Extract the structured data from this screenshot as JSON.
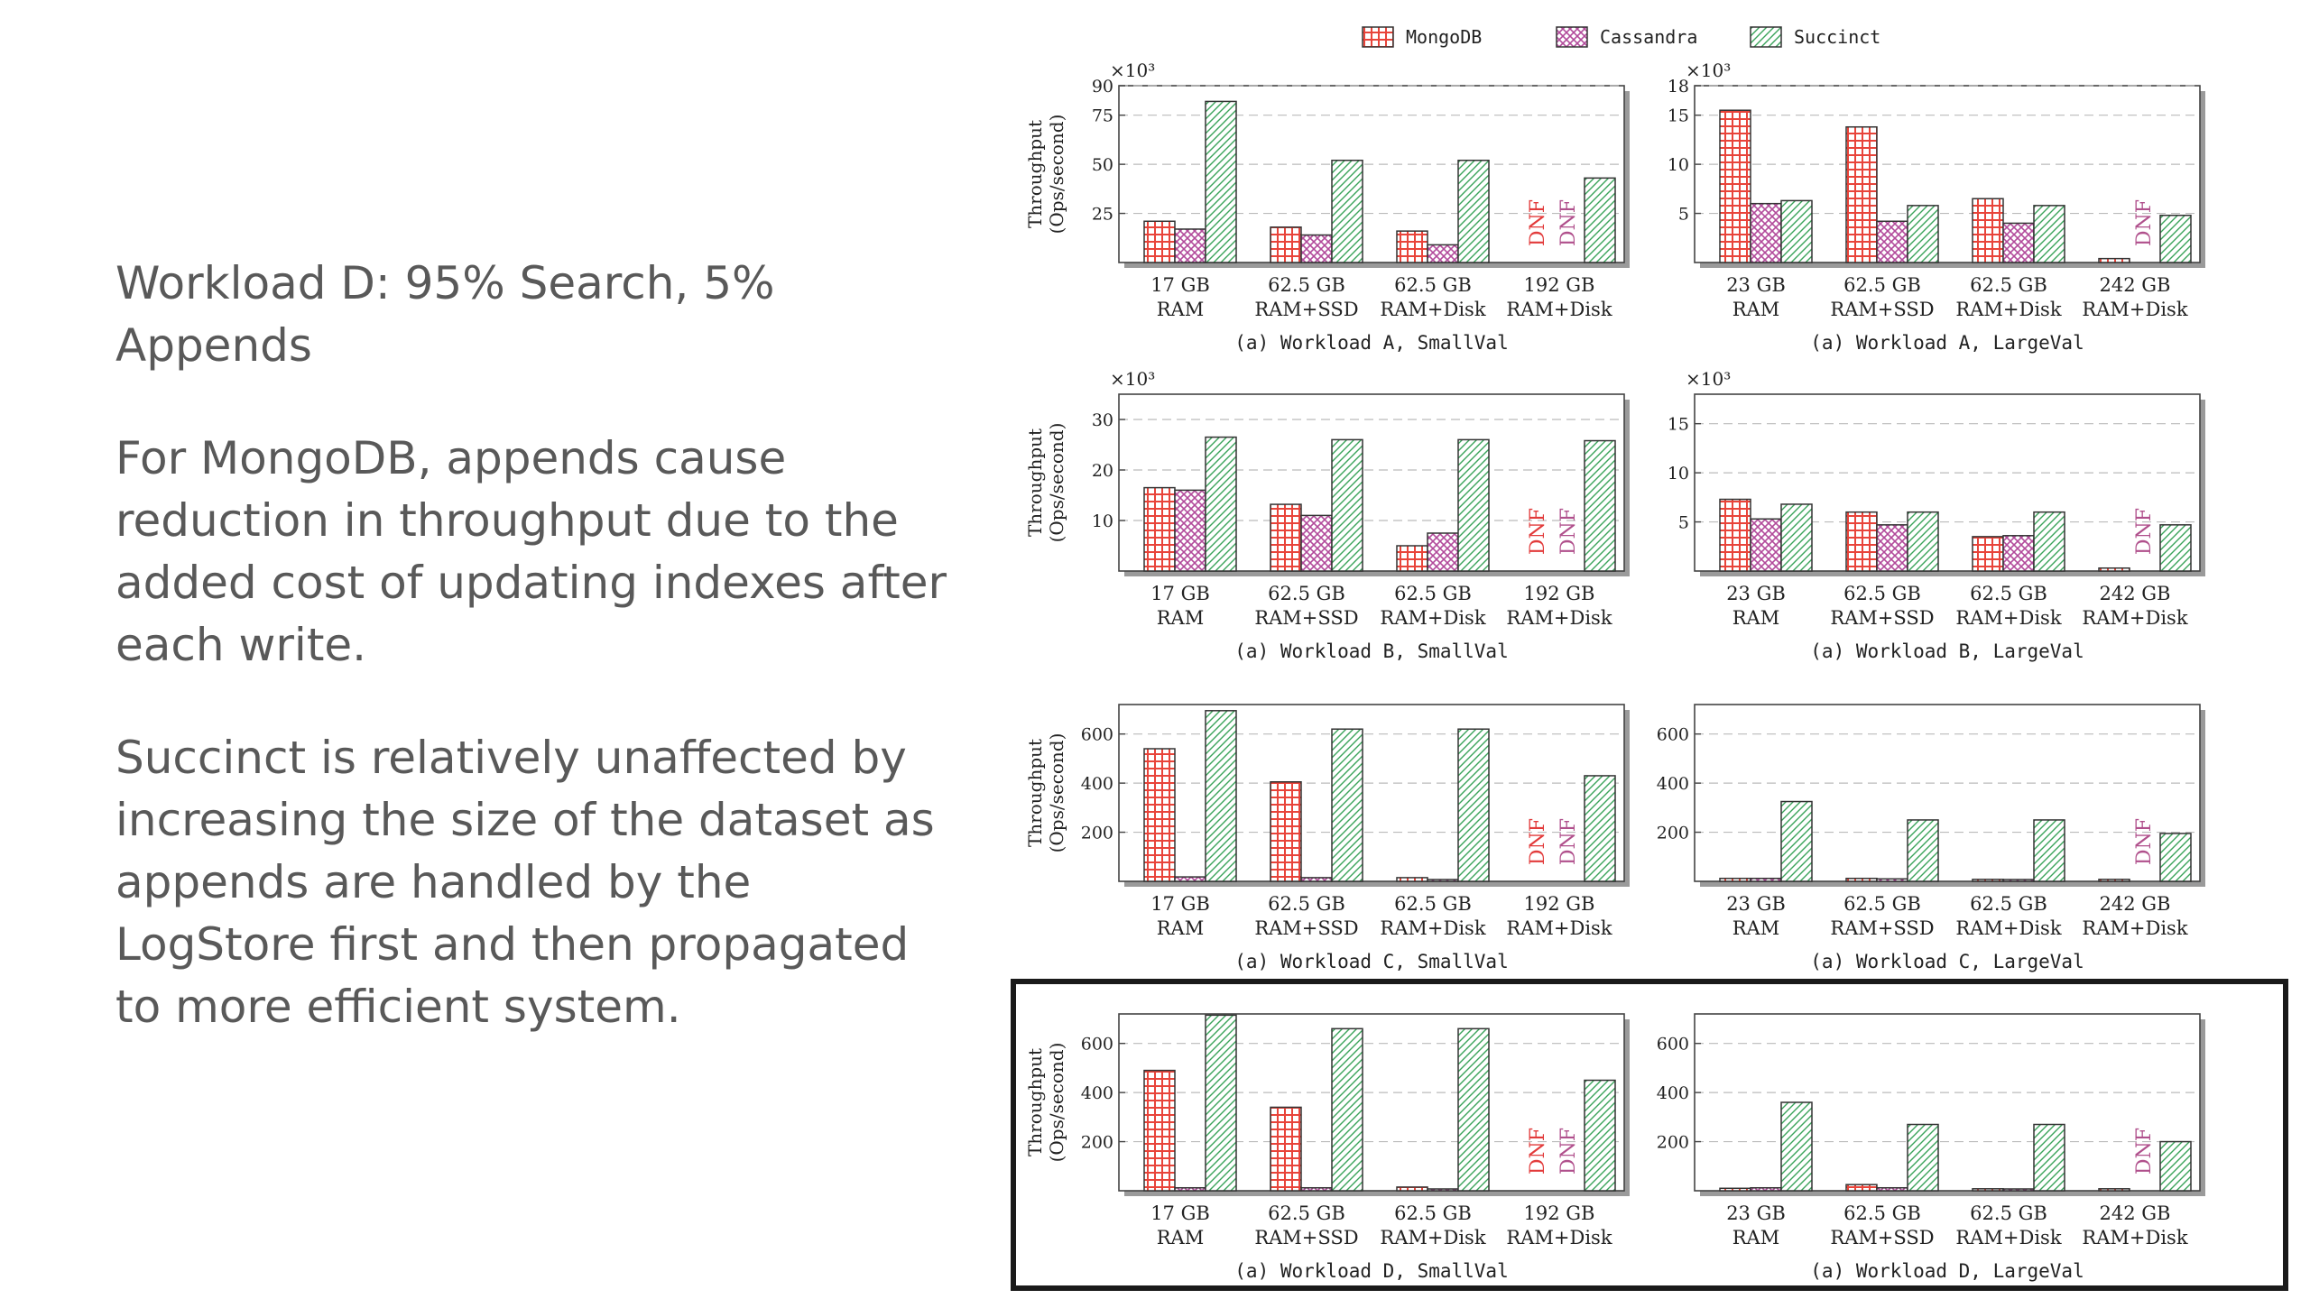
{
  "slide": {
    "heading": "Workload D: 95% Search, 5% Appends",
    "para1": "For MongoDB, appends cause reduction in throughput due to the added cost of updating indexes after each write.",
    "para2": "Succinct is relatively unaffected by increasing the size of the dataset as appends are handled by the LogStore first and then propagated to more efficient system."
  },
  "chart_data": {
    "type": "bar",
    "legend": [
      "MongoDB",
      "Cassandra",
      "Succinct"
    ],
    "legend_position": "top",
    "colors": {
      "MongoDB": "#e8443a",
      "Cassandra": "#b24a9b",
      "Succinct": "#3aa35a",
      "dnf": "#e23b3b",
      "dnf_alt": "#b0508c",
      "highlight": "#1a1a1a"
    },
    "ylabel": "Throughput (Ops/second)",
    "dnf_label": "DNF",
    "grid": true,
    "highlighted_rows": [
      3
    ],
    "panels": [
      {
        "caption": "(a) Workload A, SmallVal",
        "row": 0,
        "col": 0,
        "exp": "×10³",
        "ylim": [
          0,
          90
        ],
        "yticks": [
          "25",
          "50",
          "75",
          "90"
        ],
        "ytick_values": [
          25,
          50,
          75,
          90
        ],
        "categories": [
          "17 GB\nRAM",
          "62.5 GB\nRAM+SSD",
          "62.5 GB\nRAM+Disk",
          "192 GB\nRAM+Disk"
        ],
        "series": [
          {
            "name": "MongoDB",
            "values": [
              21,
              18,
              16,
              null
            ]
          },
          {
            "name": "Cassandra",
            "values": [
              17,
              14,
              9,
              null
            ]
          },
          {
            "name": "Succinct",
            "values": [
              82,
              52,
              52,
              43
            ]
          }
        ]
      },
      {
        "caption": "(a) Workload A, LargeVal",
        "row": 0,
        "col": 1,
        "exp": "×10³",
        "ylim": [
          0,
          18
        ],
        "yticks": [
          "5",
          "10",
          "15",
          "18"
        ],
        "ytick_values": [
          5,
          10,
          15,
          18
        ],
        "categories": [
          "23 GB\nRAM",
          "62.5 GB\nRAM+SSD",
          "62.5 GB\nRAM+Disk",
          "242 GB\nRAM+Disk"
        ],
        "series": [
          {
            "name": "MongoDB",
            "values": [
              15.5,
              13.8,
              6.5,
              0.4
            ]
          },
          {
            "name": "Cassandra",
            "values": [
              6,
              4.2,
              4,
              null
            ]
          },
          {
            "name": "Succinct",
            "values": [
              6.3,
              5.8,
              5.8,
              4.8
            ]
          }
        ]
      },
      {
        "caption": "(a) Workload B, SmallVal",
        "row": 1,
        "col": 0,
        "exp": "×10³",
        "ylim": [
          0,
          35
        ],
        "yticks": [
          "10",
          "20",
          "30"
        ],
        "ytick_values": [
          10,
          20,
          30
        ],
        "categories": [
          "17 GB\nRAM",
          "62.5 GB\nRAM+SSD",
          "62.5 GB\nRAM+Disk",
          "192 GB\nRAM+Disk"
        ],
        "series": [
          {
            "name": "MongoDB",
            "values": [
              16.5,
              13.2,
              5,
              null
            ]
          },
          {
            "name": "Cassandra",
            "values": [
              16,
              11,
              7.5,
              null
            ]
          },
          {
            "name": "Succinct",
            "values": [
              26.5,
              26,
              26,
              25.8
            ]
          }
        ]
      },
      {
        "caption": "(a) Workload B, LargeVal",
        "row": 1,
        "col": 1,
        "exp": "×10³",
        "ylim": [
          0,
          18
        ],
        "yticks": [
          "5",
          "10",
          "15"
        ],
        "ytick_values": [
          5,
          10,
          15
        ],
        "categories": [
          "23 GB\nRAM",
          "62.5 GB\nRAM+SSD",
          "62.5 GB\nRAM+Disk",
          "242 GB\nRAM+Disk"
        ],
        "series": [
          {
            "name": "MongoDB",
            "values": [
              7.3,
              6,
              3.5,
              0.3
            ]
          },
          {
            "name": "Cassandra",
            "values": [
              5.3,
              4.7,
              3.6,
              null
            ]
          },
          {
            "name": "Succinct",
            "values": [
              6.8,
              6,
              6,
              4.7
            ]
          }
        ]
      },
      {
        "caption": "(a) Workload C, SmallVal",
        "row": 2,
        "col": 0,
        "exp": "",
        "ylim": [
          0,
          720
        ],
        "yticks": [
          "200",
          "400",
          "600"
        ],
        "ytick_values": [
          200,
          400,
          600
        ],
        "categories": [
          "17 GB\nRAM",
          "62.5 GB\nRAM+SSD",
          "62.5 GB\nRAM+Disk",
          "192 GB\nRAM+Disk"
        ],
        "series": [
          {
            "name": "MongoDB",
            "values": [
              540,
              405,
              15,
              null
            ]
          },
          {
            "name": "Cassandra",
            "values": [
              18,
              15,
              5,
              null
            ]
          },
          {
            "name": "Succinct",
            "values": [
              695,
              620,
              620,
              430
            ]
          }
        ]
      },
      {
        "caption": "(a) Workload C, LargeVal",
        "row": 2,
        "col": 1,
        "exp": "",
        "ylim": [
          0,
          720
        ],
        "yticks": [
          "200",
          "400",
          "600"
        ],
        "ytick_values": [
          200,
          400,
          600
        ],
        "categories": [
          "23 GB\nRAM",
          "62.5 GB\nRAM+SSD",
          "62.5 GB\nRAM+Disk",
          "242 GB\nRAM+Disk"
        ],
        "series": [
          {
            "name": "MongoDB",
            "values": [
              12,
              12,
              8,
              8
            ]
          },
          {
            "name": "Cassandra",
            "values": [
              12,
              10,
              6,
              null
            ]
          },
          {
            "name": "Succinct",
            "values": [
              325,
              250,
              250,
              195
            ]
          }
        ]
      },
      {
        "caption": "(a) Workload D, SmallVal",
        "row": 3,
        "col": 0,
        "exp": "",
        "ylim": [
          0,
          720
        ],
        "yticks": [
          "200",
          "400",
          "600"
        ],
        "ytick_values": [
          200,
          400,
          600
        ],
        "categories": [
          "17 GB\nRAM",
          "62.5 GB\nRAM+SSD",
          "62.5 GB\nRAM+Disk",
          "192 GB\nRAM+Disk"
        ],
        "series": [
          {
            "name": "MongoDB",
            "values": [
              490,
              340,
              15,
              null
            ]
          },
          {
            "name": "Cassandra",
            "values": [
              12,
              12,
              5,
              null
            ]
          },
          {
            "name": "Succinct",
            "values": [
              715,
              660,
              660,
              450
            ]
          }
        ]
      },
      {
        "caption": "(a) Workload D, LargeVal",
        "row": 3,
        "col": 1,
        "exp": "",
        "ylim": [
          0,
          720
        ],
        "yticks": [
          "200",
          "400",
          "600"
        ],
        "ytick_values": [
          200,
          400,
          600
        ],
        "categories": [
          "23 GB\nRAM",
          "62.5 GB\nRAM+SSD",
          "62.5 GB\nRAM+Disk",
          "242 GB\nRAM+Disk"
        ],
        "series": [
          {
            "name": "MongoDB",
            "values": [
              10,
              25,
              8,
              8
            ]
          },
          {
            "name": "Cassandra",
            "values": [
              12,
              12,
              5,
              null
            ]
          },
          {
            "name": "Succinct",
            "values": [
              360,
              270,
              270,
              200
            ]
          }
        ]
      }
    ]
  }
}
